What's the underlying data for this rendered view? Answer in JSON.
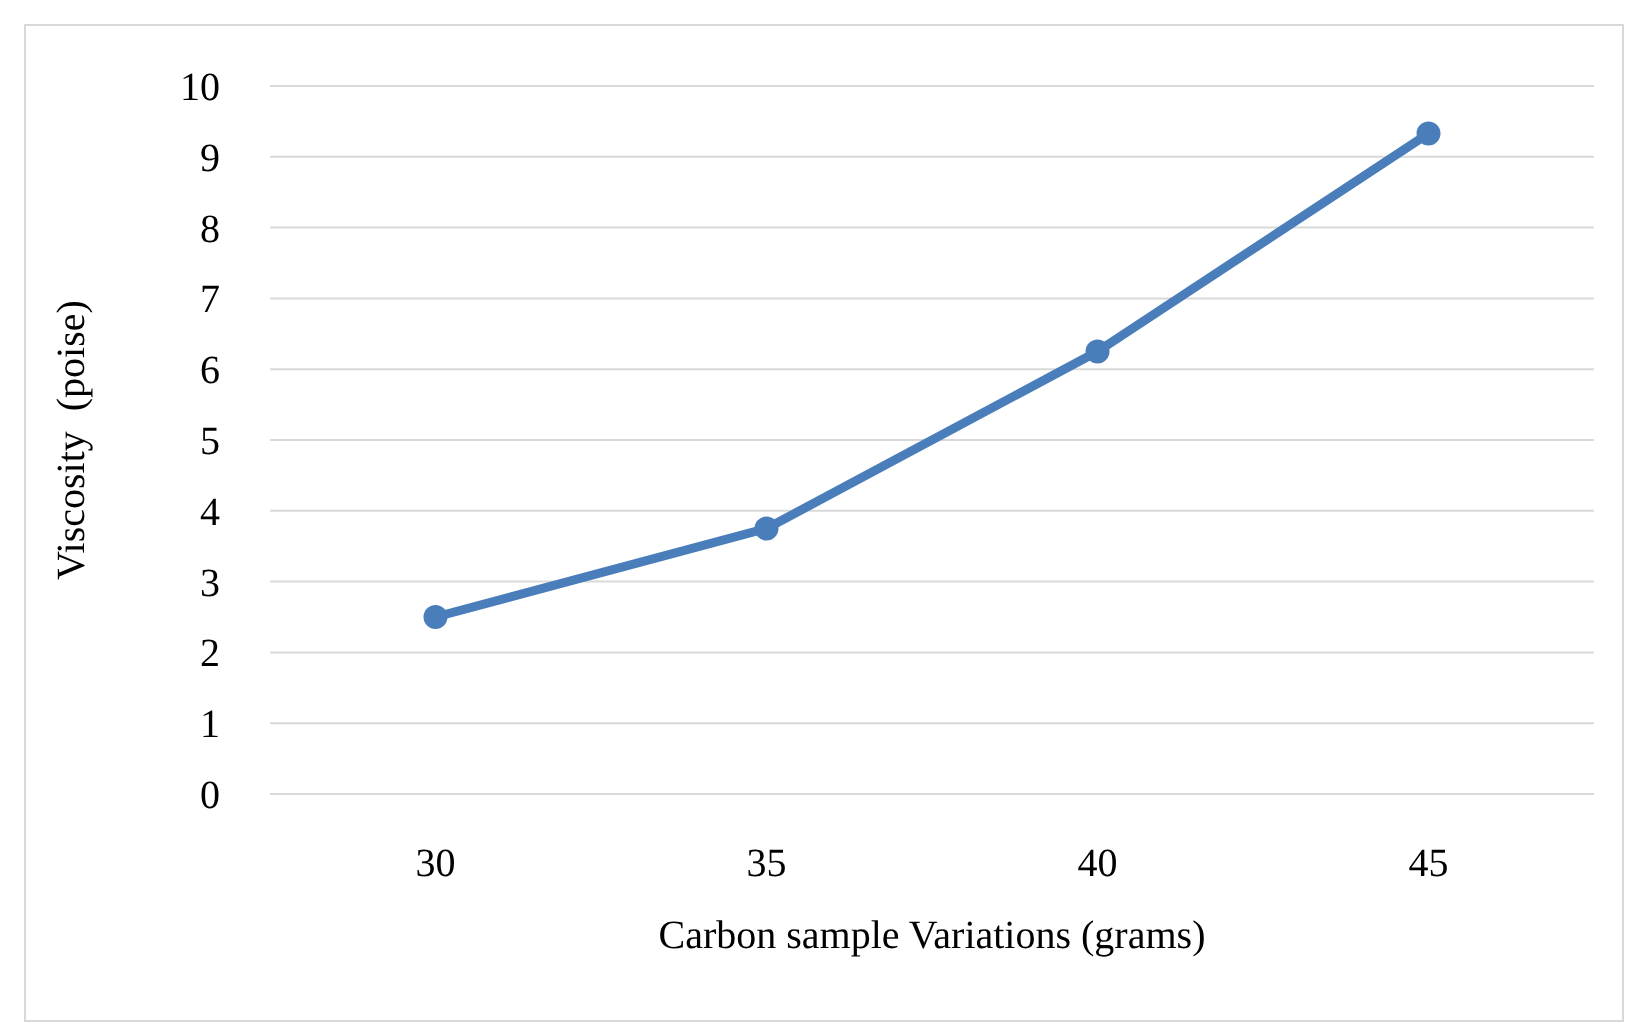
{
  "chart_data": {
    "type": "line",
    "xlabel": "Carbon sample Variations (grams)",
    "ylabel": "Viscosity  (poise)",
    "categories": [
      "30",
      "35",
      "40",
      "45"
    ],
    "series": [
      {
        "color": "#4a7ebb",
        "values": [
          2.5,
          3.75,
          6.25,
          9.33
        ]
      }
    ],
    "ylim": [
      0,
      10
    ],
    "yticks": [
      0,
      1,
      2,
      3,
      4,
      5,
      6,
      7,
      8,
      9,
      10
    ],
    "grid": "y",
    "marker": "circle",
    "line_style": "solid"
  }
}
